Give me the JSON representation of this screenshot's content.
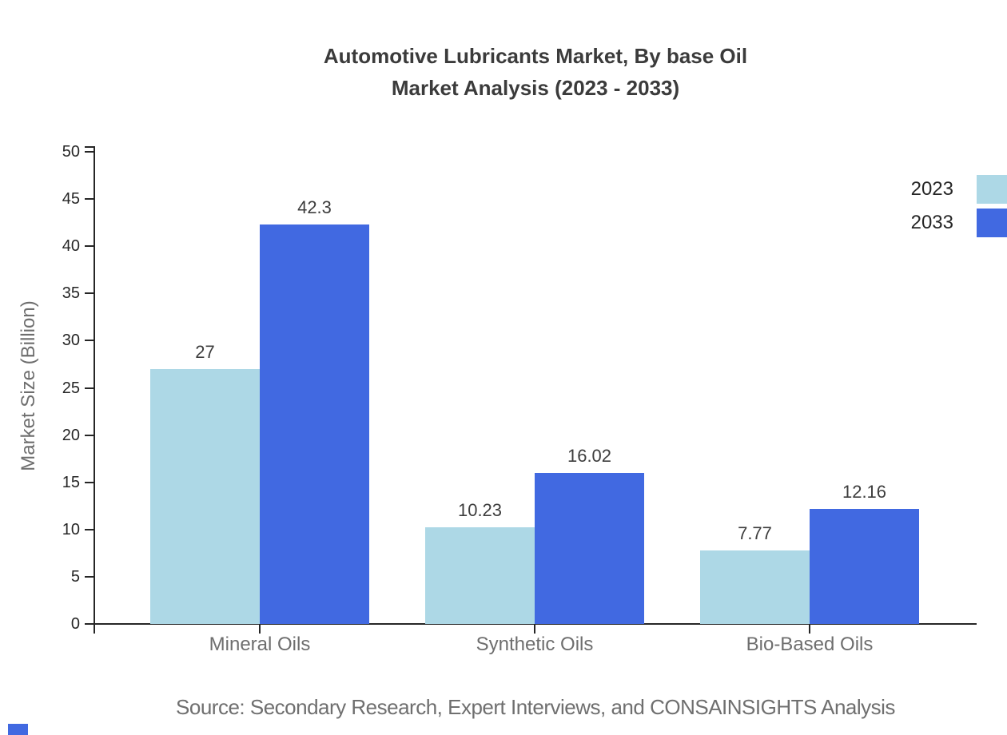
{
  "chart_data": {
    "type": "bar",
    "title_line1": "Automotive Lubricants Market, By base Oil",
    "title_line2": "Market Analysis (2023 - 2033)",
    "categories": [
      "Mineral Oils",
      "Synthetic Oils",
      "Bio-Based Oils"
    ],
    "series": [
      {
        "name": "2023",
        "color": "#ADD8E6",
        "values": [
          27,
          10.23,
          7.77
        ]
      },
      {
        "name": "2033",
        "color": "#4169E1",
        "values": [
          42.3,
          16.02,
          12.16
        ]
      }
    ],
    "ylabel": "Market Size (Billion)",
    "ylim": [
      0,
      50
    ],
    "ytick_step": 5,
    "grid": false,
    "legend_position": "top-right",
    "source": "Source: Secondary Research, Expert Interviews, and CONSAINSIGHTS Analysis"
  },
  "colors": {
    "background": "#ffffff",
    "title": "#3b3b3b",
    "axis": "#262626",
    "muted": "#6e6e6e",
    "value_label": "#3d3d3d",
    "series_2023": "#ADD8E6",
    "series_2033": "#4169E1",
    "brand_mark": "#4169E1"
  }
}
